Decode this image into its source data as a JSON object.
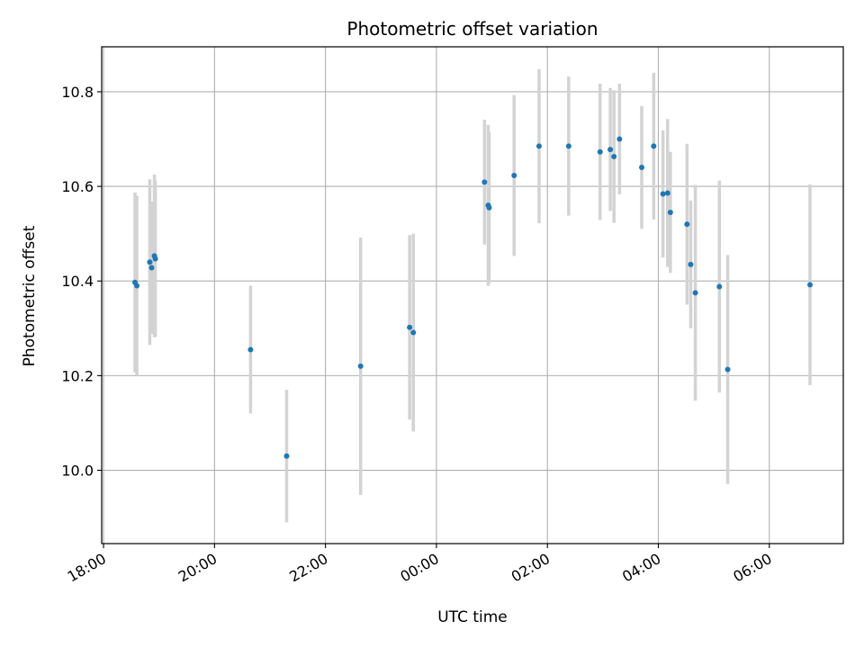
{
  "chart_data": {
    "type": "scatter",
    "title": "Photometric offset variation",
    "xlabel": "UTC time",
    "ylabel": "Photometric offset",
    "x_unit": "UTC time (HH:MM, night spanning midnight)",
    "xlim": [
      "17:58",
      "07:20"
    ],
    "ylim": [
      9.845,
      10.895
    ],
    "x_ticks": [
      "18:00",
      "20:00",
      "22:00",
      "00:00",
      "02:00",
      "04:00",
      "06:00"
    ],
    "y_ticks": [
      10.0,
      10.2,
      10.4,
      10.6,
      10.8
    ],
    "grid": true,
    "colors": {
      "point": "#1f77b4",
      "errorbar": "#d3d3d3",
      "grid": "#b0b0b0"
    },
    "points": [
      {
        "x": "18:34",
        "y": 10.397,
        "err": 0.19
      },
      {
        "x": "18:36",
        "y": 10.39,
        "err": 0.19
      },
      {
        "x": "18:50",
        "y": 10.44,
        "err": 0.175
      },
      {
        "x": "18:52",
        "y": 10.428,
        "err": 0.14
      },
      {
        "x": "18:55",
        "y": 10.453,
        "err": 0.172
      },
      {
        "x": "18:56",
        "y": 10.447,
        "err": 0.165
      },
      {
        "x": "20:39",
        "y": 10.255,
        "err": 0.135
      },
      {
        "x": "21:18",
        "y": 10.03,
        "err": 0.14
      },
      {
        "x": "22:38",
        "y": 10.22,
        "err": 0.272
      },
      {
        "x": "23:31",
        "y": 10.302,
        "err": 0.195
      },
      {
        "x": "23:35",
        "y": 10.291,
        "err": 0.209
      },
      {
        "x": "00:52",
        "y": 10.609,
        "err": 0.132
      },
      {
        "x": "00:56",
        "y": 10.56,
        "err": 0.17
      },
      {
        "x": "00:57",
        "y": 10.555,
        "err": 0.16
      },
      {
        "x": "01:24",
        "y": 10.623,
        "err": 0.17
      },
      {
        "x": "01:51",
        "y": 10.685,
        "err": 0.163
      },
      {
        "x": "02:23",
        "y": 10.685,
        "err": 0.147
      },
      {
        "x": "02:57",
        "y": 10.673,
        "err": 0.144
      },
      {
        "x": "03:08",
        "y": 10.678,
        "err": 0.13
      },
      {
        "x": "03:12",
        "y": 10.663,
        "err": 0.14
      },
      {
        "x": "03:18",
        "y": 10.7,
        "err": 0.117
      },
      {
        "x": "03:42",
        "y": 10.64,
        "err": 0.13
      },
      {
        "x": "03:55",
        "y": 10.685,
        "err": 0.155
      },
      {
        "x": "04:05",
        "y": 10.584,
        "err": 0.134
      },
      {
        "x": "04:10",
        "y": 10.586,
        "err": 0.156
      },
      {
        "x": "04:13",
        "y": 10.545,
        "err": 0.128
      },
      {
        "x": "04:31",
        "y": 10.52,
        "err": 0.17
      },
      {
        "x": "04:35",
        "y": 10.435,
        "err": 0.135
      },
      {
        "x": "04:40",
        "y": 10.375,
        "err": 0.228
      },
      {
        "x": "05:06",
        "y": 10.388,
        "err": 0.224
      },
      {
        "x": "05:15",
        "y": 10.213,
        "err": 0.242
      },
      {
        "x": "06:44",
        "y": 10.392,
        "err": 0.212
      }
    ]
  }
}
